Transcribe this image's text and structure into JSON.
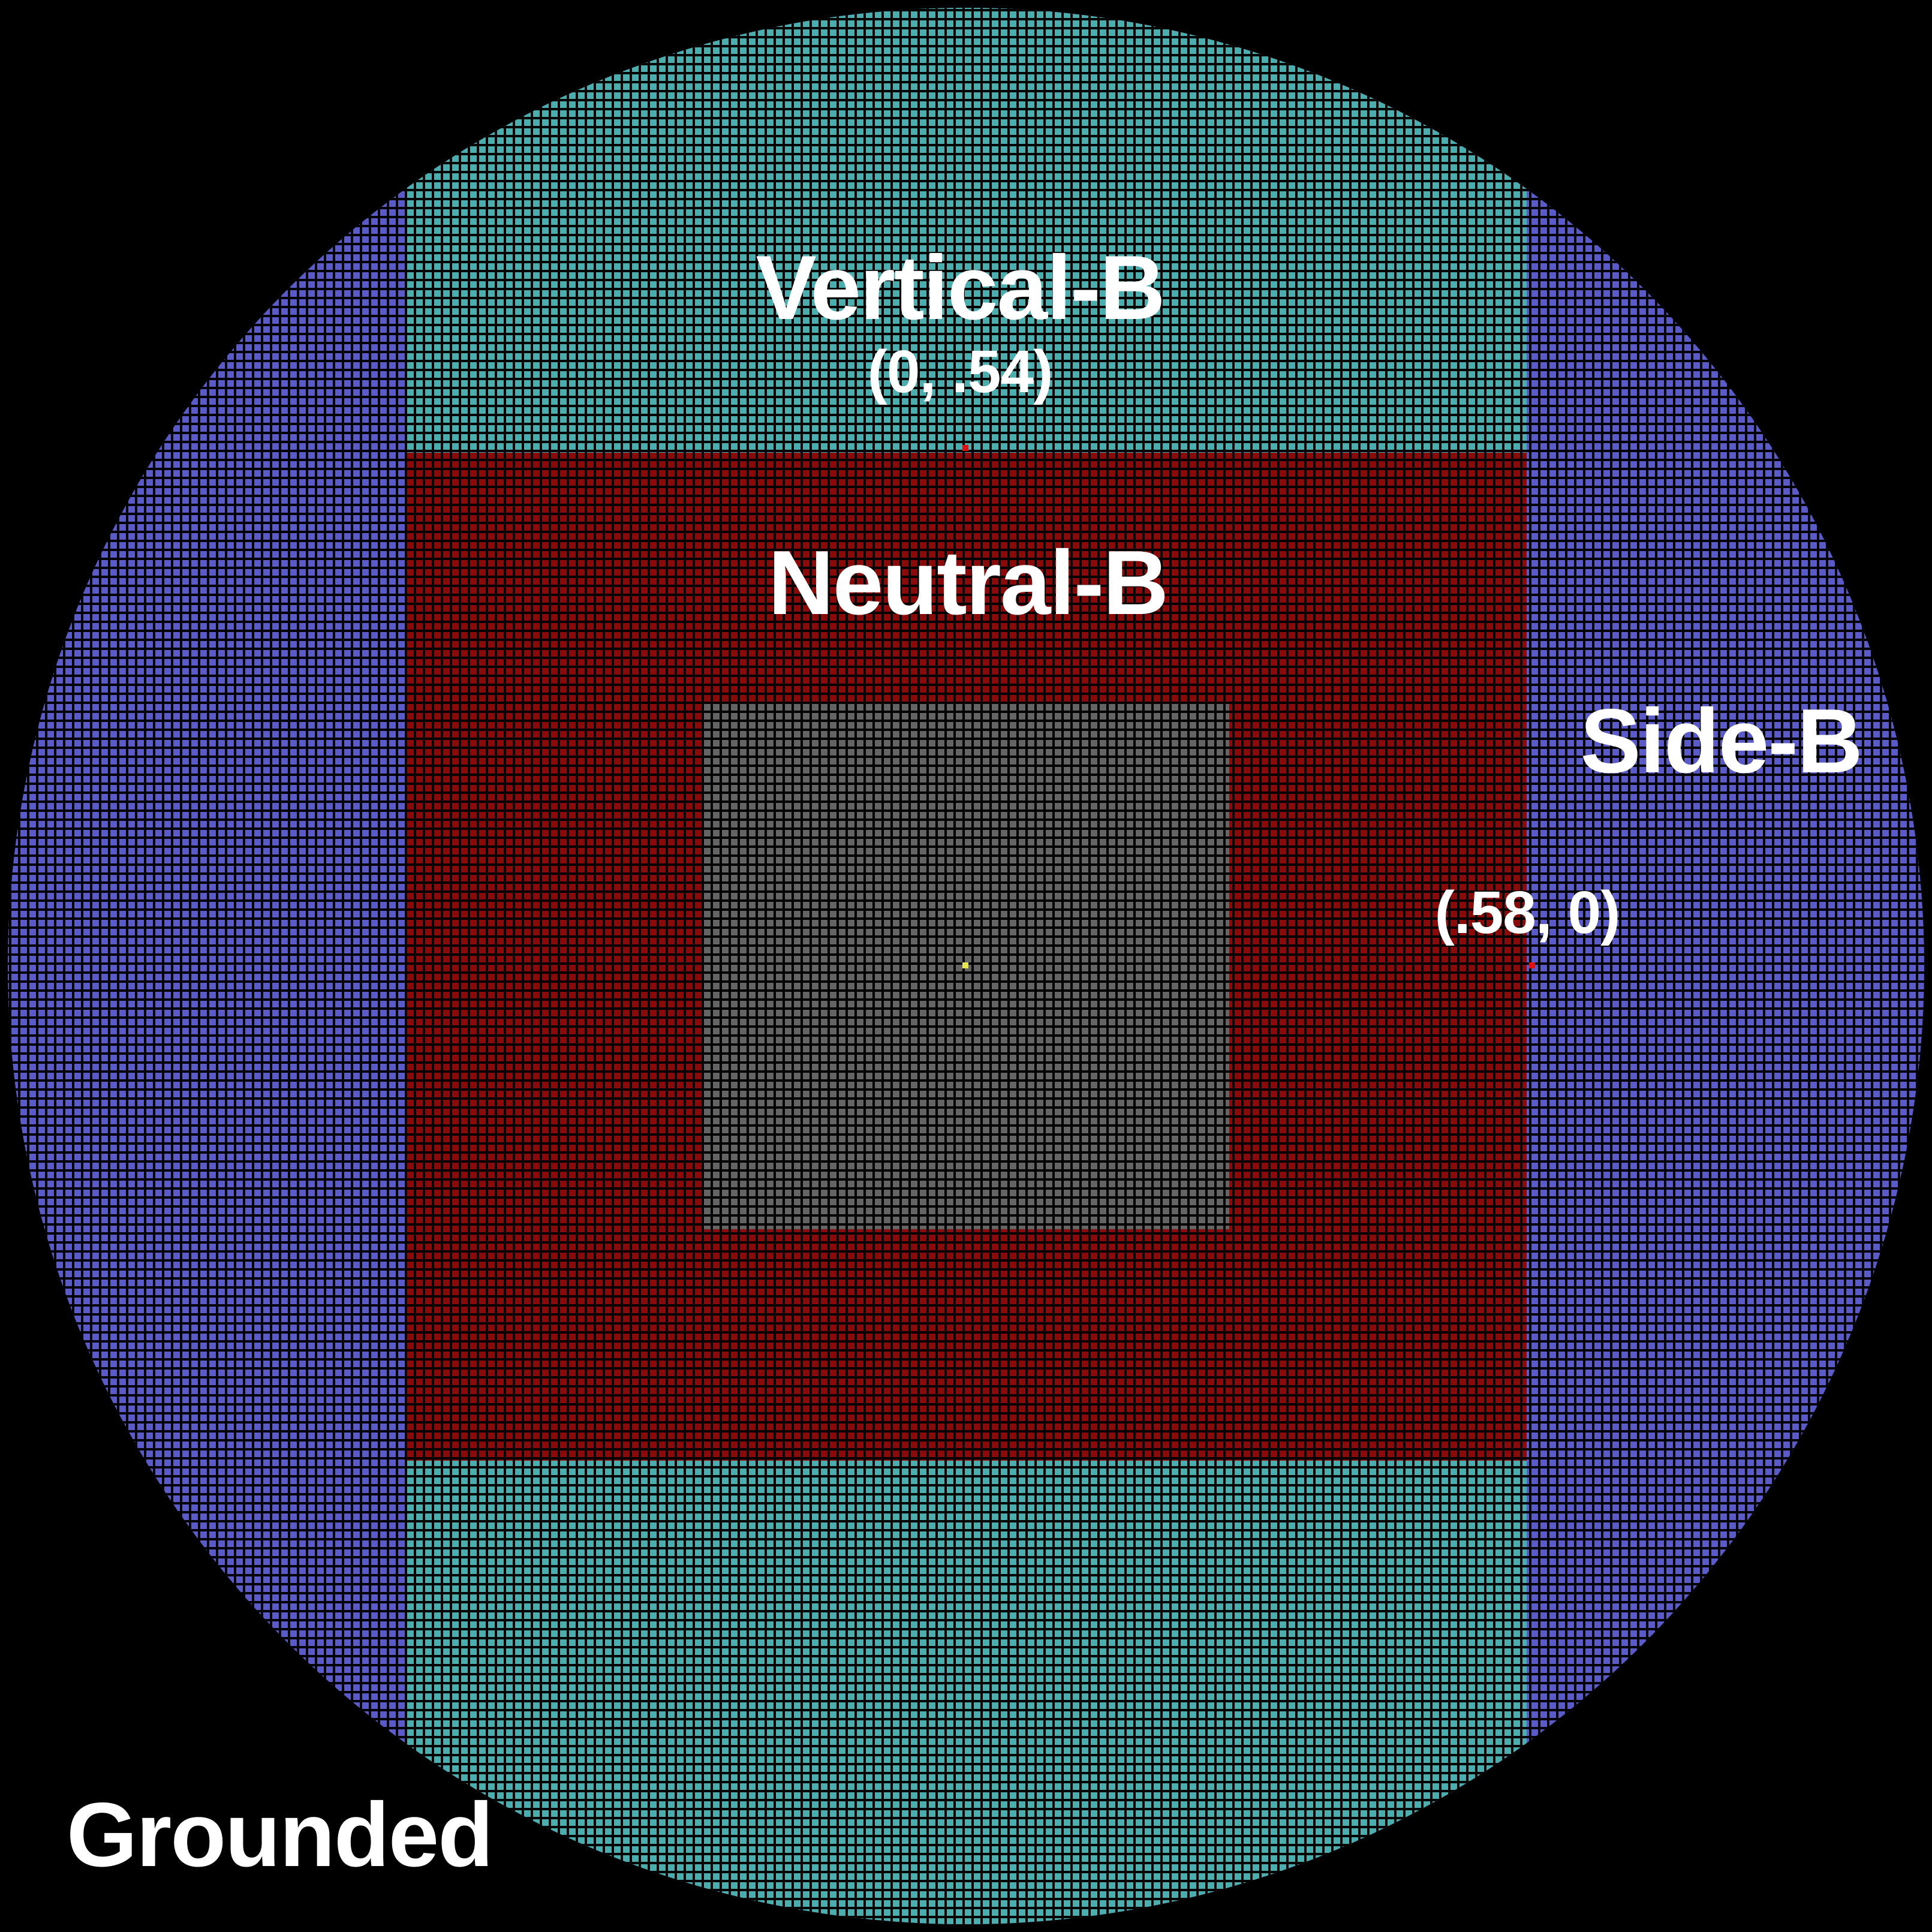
{
  "regions": {
    "grounded": {
      "label": "Grounded",
      "color": "#5a5ac8"
    },
    "side_b": {
      "label": "Side-B",
      "coordinate": "(.58, 0)",
      "color": "#5a5ac8"
    },
    "vertical_b": {
      "label": "Vertical-B",
      "coordinate": "(0, .54)",
      "color": "#4aaeae"
    },
    "neutral_b": {
      "label": "Neutral-B",
      "color": "#8a0a0a"
    },
    "center": {
      "color": "#646464"
    }
  },
  "background_color": "#000000",
  "grid_line_color": "#000000",
  "center_marker_color": "#e6e650"
}
